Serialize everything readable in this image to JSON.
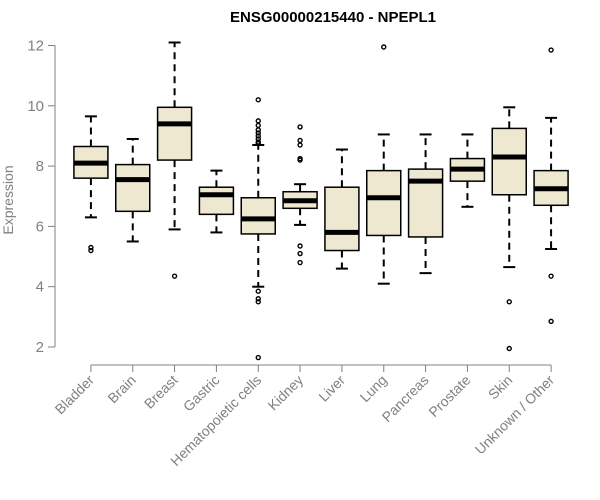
{
  "chart_data": {
    "type": "boxplot",
    "title": "ENSG00000215440 - NPEPL1",
    "xlabel": "",
    "ylabel": "Expression",
    "ylim": [
      1.5,
      12.3
    ],
    "yticks": [
      2,
      4,
      6,
      8,
      10,
      12
    ],
    "colors": {
      "box_fill": "#efe8d0",
      "stroke": "#000000",
      "axis": "#808080",
      "median": "#000000"
    },
    "categories": [
      "Bladder",
      "Brain",
      "Breast",
      "Gastric",
      "Hematopoietic cells",
      "Kidney",
      "Liver",
      "Lung",
      "Pancreas",
      "Prostate",
      "Skin",
      "Unknown / Other"
    ],
    "series": [
      {
        "name": "Bladder",
        "whisker_low": 6.3,
        "q1": 7.6,
        "median": 8.1,
        "q3": 8.65,
        "whisker_high": 9.65,
        "outliers": [
          5.2,
          5.3
        ]
      },
      {
        "name": "Brain",
        "whisker_low": 5.5,
        "q1": 6.5,
        "median": 7.55,
        "q3": 8.05,
        "whisker_high": 8.9,
        "outliers": []
      },
      {
        "name": "Breast",
        "whisker_low": 5.9,
        "q1": 8.2,
        "median": 9.4,
        "q3": 9.95,
        "whisker_high": 12.1,
        "outliers": [
          4.35
        ]
      },
      {
        "name": "Gastric",
        "whisker_low": 5.8,
        "q1": 6.4,
        "median": 7.05,
        "q3": 7.3,
        "whisker_high": 7.85,
        "outliers": []
      },
      {
        "name": "Hematopoietic cells",
        "whisker_low": 4.0,
        "q1": 5.75,
        "median": 6.25,
        "q3": 6.95,
        "whisker_high": 8.7,
        "outliers": [
          10.2,
          9.5,
          9.35,
          9.2,
          9.1,
          9.0,
          8.9,
          8.8,
          8.75,
          3.85,
          3.6,
          3.5,
          1.65
        ]
      },
      {
        "name": "Kidney",
        "whisker_low": 6.05,
        "q1": 6.6,
        "median": 6.85,
        "q3": 7.15,
        "whisker_high": 7.4,
        "outliers": [
          9.3,
          8.85,
          8.7,
          8.25,
          8.2,
          5.35,
          5.1,
          4.8
        ]
      },
      {
        "name": "Liver",
        "whisker_low": 4.6,
        "q1": 5.2,
        "median": 5.8,
        "q3": 7.3,
        "whisker_high": 8.55,
        "outliers": []
      },
      {
        "name": "Lung",
        "whisker_low": 4.1,
        "q1": 5.7,
        "median": 6.95,
        "q3": 7.85,
        "whisker_high": 9.05,
        "outliers": [
          11.95
        ]
      },
      {
        "name": "Pancreas",
        "whisker_low": 4.45,
        "q1": 5.65,
        "median": 7.5,
        "q3": 7.9,
        "whisker_high": 9.05,
        "outliers": []
      },
      {
        "name": "Prostate",
        "whisker_low": 6.65,
        "q1": 7.5,
        "median": 7.9,
        "q3": 8.25,
        "whisker_high": 9.05,
        "outliers": []
      },
      {
        "name": "Skin",
        "whisker_low": 4.65,
        "q1": 7.05,
        "median": 8.3,
        "q3": 9.25,
        "whisker_high": 9.95,
        "outliers": [
          3.5,
          1.95
        ]
      },
      {
        "name": "Unknown / Other",
        "whisker_low": 5.25,
        "q1": 6.7,
        "median": 7.25,
        "q3": 7.85,
        "whisker_high": 9.6,
        "outliers": [
          11.85,
          4.35,
          2.85
        ]
      }
    ]
  }
}
